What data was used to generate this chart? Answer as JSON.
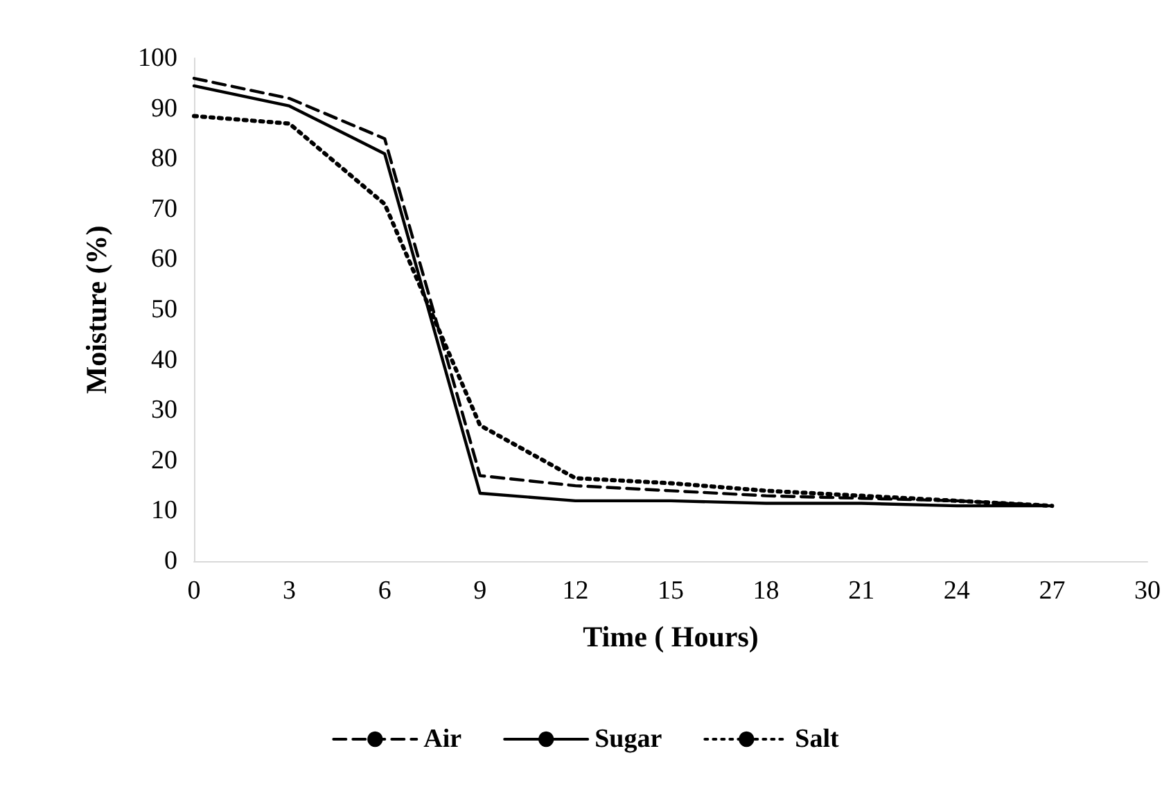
{
  "chart_data": {
    "type": "line",
    "xlabel": "Time ( Hours)",
    "ylabel": "Moisture (%)",
    "x": [
      0,
      3,
      6,
      9,
      12,
      15,
      18,
      21,
      24,
      27
    ],
    "series": [
      {
        "name": "Air",
        "color": "#000000",
        "line_style": "dashed",
        "values": [
          96,
          92,
          84,
          17,
          15,
          14,
          13,
          12.5,
          12,
          11
        ]
      },
      {
        "name": "Sugar",
        "color": "#000000",
        "line_style": "solid",
        "values": [
          94.5,
          90.5,
          81,
          13.5,
          12,
          12,
          11.5,
          11.5,
          11,
          11
        ]
      },
      {
        "name": "Salt",
        "color": "#000000",
        "line_style": "dotted",
        "values": [
          88.5,
          87,
          71,
          27,
          16.5,
          15.5,
          14,
          13,
          12,
          11
        ]
      }
    ],
    "xlim": [
      0,
      30
    ],
    "xticks": [
      0,
      3,
      6,
      9,
      12,
      15,
      18,
      21,
      24,
      27,
      30
    ],
    "ylim": [
      0,
      100
    ],
    "yticks": [
      0,
      10,
      20,
      30,
      40,
      50,
      60,
      70,
      80,
      90,
      100
    ],
    "grid": false,
    "legend": "bottom",
    "marker": "none"
  }
}
